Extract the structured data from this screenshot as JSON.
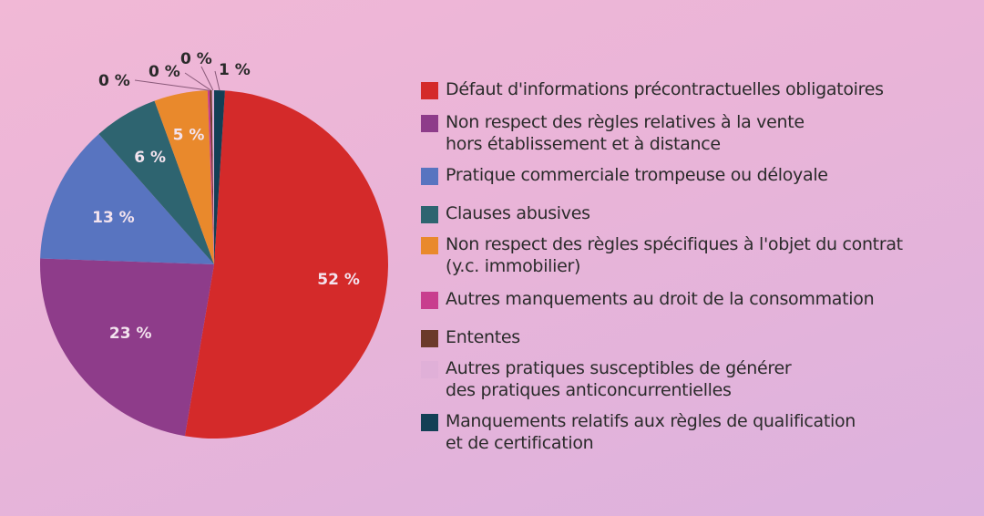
{
  "chart_data": {
    "type": "pie",
    "slices": [
      {
        "label": "Défaut d'informations précontractuelles obligatoires",
        "value": 52,
        "display": "52 %",
        "color": "#d42a2a"
      },
      {
        "label": "Non respect des règles relatives à la vente hors établissement et à distance",
        "value": 23,
        "display": "23 %",
        "color": "#8e3c8a"
      },
      {
        "label": "Pratique commerciale trompeuse ou déloyale",
        "value": 13,
        "display": "13 %",
        "color": "#5874c0"
      },
      {
        "label": "Clauses abusives",
        "value": 6,
        "display": "6 %",
        "color": "#2e6470"
      },
      {
        "label": "Non respect des règles spécifiques à l'objet du contrat (y.c. immobilier)",
        "value": 5,
        "display": "5 %",
        "color": "#e9892c"
      },
      {
        "label": "Autres manquements au droit de la consommation",
        "value": 0.2,
        "display": "0 %",
        "color": "#c83e8e"
      },
      {
        "label": "Ententes",
        "value": 0.2,
        "display": "0 %",
        "color": "#6b3a2a"
      },
      {
        "label": "Autres pratiques susceptibles de générer des pratiques anticoncurrentielles",
        "value": 0.2,
        "display": "0 %",
        "color": "#e0b0d8"
      },
      {
        "label": "Manquements relatifs aux règles de qualification et de certification",
        "value": 1,
        "display": "1 %",
        "color": "#133f55"
      }
    ],
    "legend_placement": "right"
  },
  "legend": [
    {
      "color": "#d42a2a",
      "lines": [
        "Défaut d'informations précontractuelles obligatoires"
      ]
    },
    {
      "color": "#8e3c8a",
      "lines": [
        "Non respect des règles relatives à la vente",
        "hors établissement et à distance"
      ]
    },
    {
      "color": "#5874c0",
      "lines": [
        "Pratique commerciale trompeuse ou déloyale"
      ]
    },
    {
      "color": "#2e6470",
      "lines": [
        "Clauses abusives"
      ]
    },
    {
      "color": "#e9892c",
      "lines": [
        "Non respect des règles spécifiques à l'objet du contrat",
        "(y.c. immobilier)"
      ]
    },
    {
      "color": "#c83e8e",
      "lines": [
        "Autres manquements au droit de la consommation"
      ]
    },
    {
      "color": "#6b3a2a",
      "lines": [
        "Ententes"
      ]
    },
    {
      "color": "#e0b0d8",
      "lines": [
        "Autres pratiques susceptibles de générer",
        "des pratiques anticoncurrentielles"
      ]
    },
    {
      "color": "#133f55",
      "lines": [
        "Manquements relatifs aux règles de qualification",
        "et de certification"
      ]
    }
  ]
}
